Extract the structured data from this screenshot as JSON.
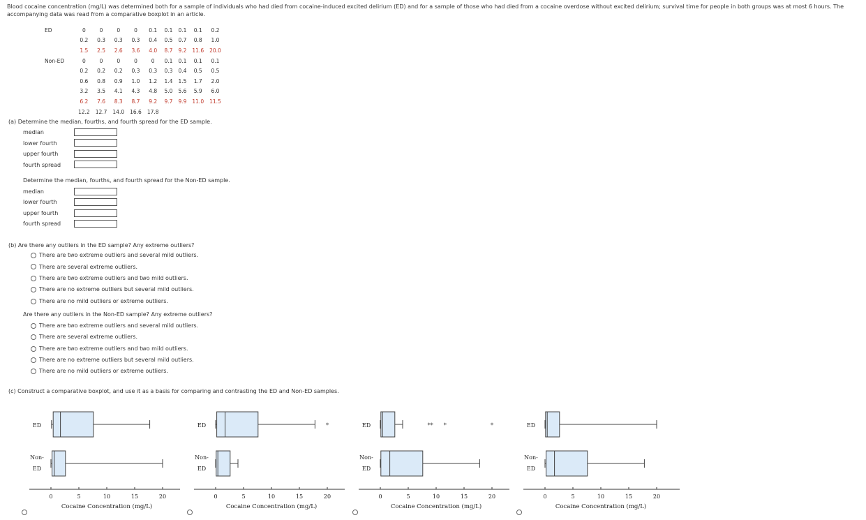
{
  "intro": "Blood cocaine concentration (mg/L) was determined both for a sample of individuals who had died from cocaine-induced excited delirium (ED) and for a sample of those who had died from a cocaine overdose without excited delirium; survival time for people in both groups was at most 6 hours. The accompanying data was read from a comparative boxplot in an article.",
  "data_table": {
    "ed_label": "ED",
    "non_ed_label": "Non-ED",
    "ed_rows": [
      {
        "cells": [
          "0",
          "0",
          "0",
          "0",
          "0.1",
          "0.1",
          "0.1",
          "0.1",
          "0.2"
        ],
        "red": false
      },
      {
        "cells": [
          "0.2",
          "0.3",
          "0.3",
          "0.3",
          "0.4",
          "0.5",
          "0.7",
          "0.8",
          "1.0"
        ],
        "red": false
      },
      {
        "cells": [
          "1.5",
          "2.5",
          "2.6",
          "3.6",
          "4.0",
          "8.7",
          "9.2",
          "11.6",
          "20.0"
        ],
        "red": true
      }
    ],
    "non_ed_rows": [
      {
        "cells": [
          "0",
          "0",
          "0",
          "0",
          "0",
          "0.1",
          "0.1",
          "0.1",
          "0.1"
        ],
        "red": false
      },
      {
        "cells": [
          "0.2",
          "0.2",
          "0.2",
          "0.3",
          "0.3",
          "0.3",
          "0.4",
          "0.5",
          "0.5"
        ],
        "red": false
      },
      {
        "cells": [
          "0.6",
          "0.8",
          "0.9",
          "1.0",
          "1.2",
          "1.4",
          "1.5",
          "1.7",
          "2.0"
        ],
        "red": false
      },
      {
        "cells": [
          "3.2",
          "3.5",
          "4.1",
          "4.3",
          "4.8",
          "5.0",
          "5.6",
          "5.9",
          "6.0"
        ],
        "red": false
      },
      {
        "cells": [
          "6.2",
          "7.6",
          "8.3",
          "8.7",
          "9.2",
          "9.7",
          "9.9",
          "11.0",
          "11.5"
        ],
        "red": true
      },
      {
        "cells": [
          "12.2",
          "12.7",
          "14.0",
          "16.6",
          "17.8",
          "",
          "",
          "",
          ""
        ],
        "red": false
      }
    ]
  },
  "part_a": {
    "question_ed": "(a)  Determine the median, fourths, and fourth spread for the ED sample.",
    "question_non_ed": "Determine the median, fourths, and fourth spread for the Non-ED sample.",
    "labels": [
      "median",
      "lower fourth",
      "upper fourth",
      "fourth spread"
    ]
  },
  "part_b": {
    "question_ed": "(b)  Are there any outliers in the ED sample? Any extreme outliers?",
    "question_non_ed": "Are there any outliers in the Non-ED sample? Any extreme outliers?",
    "options": [
      "There are two extreme outliers and several mild outliers.",
      "There are several extreme outliers.",
      "There are two extreme outliers and two mild outliers.",
      "There are no extreme outliers but several mild outliers.",
      "There are no mild outliers or extreme outliers."
    ]
  },
  "part_c": {
    "question": "(c)  Construct a comparative boxplot, and use it as a basis for comparing and contrasting the ED and Non-ED samples."
  },
  "chart_data": [
    {
      "type": "boxplot",
      "xlabel": "Cocaine Concentration (mg/L)",
      "ticks": [
        0,
        5,
        10,
        15,
        20
      ],
      "xlim": [
        0,
        20
      ],
      "ed_label": "ED",
      "non_ed_label_1": "Non-",
      "non_ed_label_2": "ED",
      "ed": {
        "wlo": 0.1,
        "q1": 0.4,
        "med": 1.7,
        "q3": 7.6,
        "whi": 17.7,
        "outliers": []
      },
      "non_ed": {
        "wlo": 0,
        "q1": 0.2,
        "med": 0.6,
        "q3": 2.6,
        "whi": 20.0,
        "outliers": []
      }
    },
    {
      "type": "boxplot",
      "xlabel": "Cocaine Concentration (mg/L)",
      "ticks": [
        0,
        5,
        10,
        15,
        20
      ],
      "xlim": [
        0,
        20
      ],
      "ed_label": "ED",
      "non_ed_label_1": "Non-",
      "non_ed_label_2": "ED",
      "ed": {
        "wlo": 0,
        "q1": 0.2,
        "med": 1.7,
        "q3": 7.6,
        "whi": 17.8,
        "outliers": [
          20.0
        ]
      },
      "non_ed": {
        "wlo": 0,
        "q1": 0.1,
        "med": 0.4,
        "q3": 2.6,
        "whi": 4.0,
        "outliers": []
      }
    },
    {
      "type": "boxplot",
      "xlabel": "Cocaine Concentration (mg/L)",
      "ticks": [
        0,
        5,
        10,
        15,
        20
      ],
      "xlim": [
        0,
        20
      ],
      "ed_label": "ED",
      "non_ed_label_1": "Non-",
      "non_ed_label_2": "ED",
      "ed": {
        "wlo": 0,
        "q1": 0.1,
        "med": 0.4,
        "q3": 2.6,
        "whi": 4.0,
        "outliers": [
          8.7,
          9.2,
          11.6,
          20.0
        ]
      },
      "non_ed": {
        "wlo": 0,
        "q1": 0.1,
        "med": 1.7,
        "q3": 7.6,
        "whi": 17.8,
        "outliers": []
      }
    },
    {
      "type": "boxplot",
      "xlabel": "Cocaine Concentration (mg/L)",
      "ticks": [
        0,
        5,
        10,
        15,
        20
      ],
      "xlim": [
        0,
        20
      ],
      "ed_label": "ED",
      "non_ed_label_1": "Non-",
      "non_ed_label_2": "ED",
      "ed": {
        "wlo": 0,
        "q1": 0.1,
        "med": 0.4,
        "q3": 2.6,
        "whi": 20.0,
        "outliers": []
      },
      "non_ed": {
        "wlo": 0,
        "q1": 0.2,
        "med": 1.7,
        "q3": 7.6,
        "whi": 17.8,
        "outliers": []
      }
    }
  ]
}
